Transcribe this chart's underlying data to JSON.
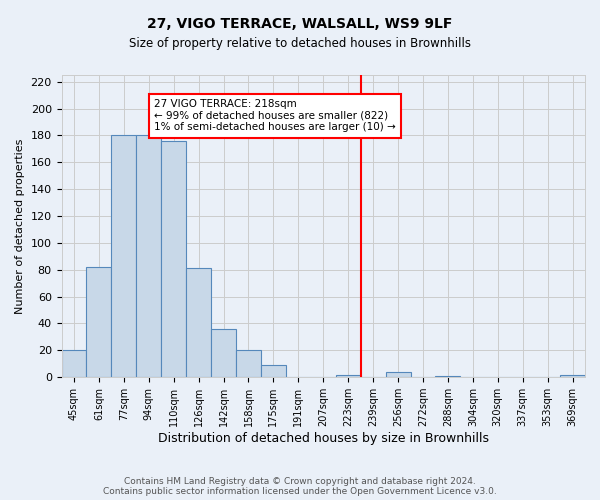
{
  "title": "27, VIGO TERRACE, WALSALL, WS9 9LF",
  "subtitle": "Size of property relative to detached houses in Brownhills",
  "xlabel": "Distribution of detached houses by size in Brownhills",
  "ylabel": "Number of detached properties",
  "bar_labels": [
    "45sqm",
    "61sqm",
    "77sqm",
    "94sqm",
    "110sqm",
    "126sqm",
    "142sqm",
    "158sqm",
    "175sqm",
    "191sqm",
    "207sqm",
    "223sqm",
    "239sqm",
    "256sqm",
    "272sqm",
    "288sqm",
    "304sqm",
    "320sqm",
    "337sqm",
    "353sqm",
    "369sqm"
  ],
  "bar_heights": [
    20,
    82,
    180,
    180,
    176,
    81,
    36,
    20,
    9,
    0,
    0,
    2,
    0,
    4,
    0,
    1,
    0,
    0,
    0,
    0,
    2
  ],
  "bar_color": "#c8d8e8",
  "bar_edge_color": "#5588bb",
  "vline_x": 11.5,
  "vline_color": "red",
  "annotation_title": "27 VIGO TERRACE: 218sqm",
  "annotation_line1": "← 99% of detached houses are smaller (822)",
  "annotation_line2": "1% of semi-detached houses are larger (10) →",
  "annotation_box_color": "white",
  "annotation_box_edge": "red",
  "ylim": [
    0,
    225
  ],
  "yticks": [
    0,
    20,
    40,
    60,
    80,
    100,
    120,
    140,
    160,
    180,
    200,
    220
  ],
  "grid_color": "#cccccc",
  "bg_color": "#eaf0f8",
  "footer1": "Contains HM Land Registry data © Crown copyright and database right 2024.",
  "footer2": "Contains public sector information licensed under the Open Government Licence v3.0."
}
